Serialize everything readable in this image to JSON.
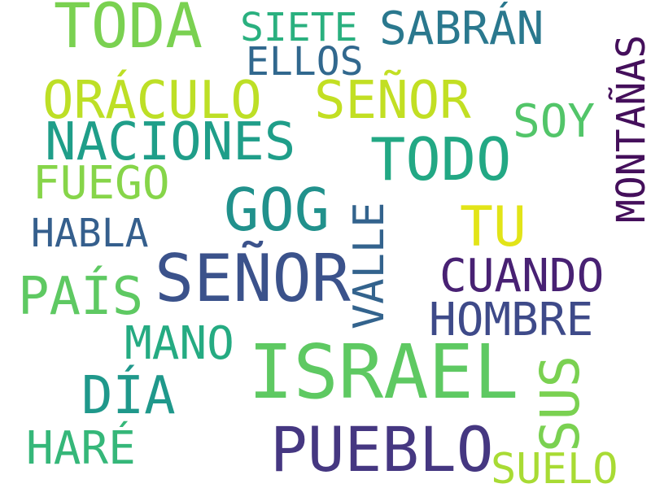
{
  "cloud": {
    "words": {
      "toda": {
        "text": "TODA",
        "color": "#7ad151"
      },
      "siete": {
        "text": "SIETE",
        "color": "#2ab07f"
      },
      "sabran": {
        "text": "SABRÁN",
        "color": "#2a788e"
      },
      "ellos": {
        "text": "ELLOS",
        "color": "#31688e"
      },
      "oraculo": {
        "text": "ORÁCULO",
        "color": "#bddf26"
      },
      "senor1": {
        "text": "SEÑOR",
        "color": "#c2df23"
      },
      "soy": {
        "text": "SOY",
        "color": "#52c569"
      },
      "naciones": {
        "text": "NACIONES",
        "color": "#1f9e89"
      },
      "todo": {
        "text": "TODO",
        "color": "#22a884"
      },
      "fuego": {
        "text": "FUEGO",
        "color": "#86d549"
      },
      "gog": {
        "text": "GOG",
        "color": "#21918c"
      },
      "tu": {
        "text": "TU",
        "color": "#e2e418"
      },
      "habla": {
        "text": "HABLA",
        "color": "#355f8d"
      },
      "senor2": {
        "text": "SEÑOR",
        "color": "#3b528b"
      },
      "cuando": {
        "text": "CUANDO",
        "color": "#482173"
      },
      "pais": {
        "text": "PAÍS",
        "color": "#5ec962"
      },
      "hombre": {
        "text": "HOMBRE",
        "color": "#3e4a89"
      },
      "mano": {
        "text": "MANO",
        "color": "#25ab82"
      },
      "israel": {
        "text": "ISRAEL",
        "color": "#5ec962"
      },
      "dia": {
        "text": "DÍA",
        "color": "#1f988b"
      },
      "hare": {
        "text": "HARÉ",
        "color": "#35b779"
      },
      "pueblo": {
        "text": "PUEBLO",
        "color": "#453781"
      },
      "suelo": {
        "text": "SUELO",
        "color": "#a8db34"
      },
      "montanas": {
        "text": "MONTAÑAS",
        "color": "#440f5b"
      },
      "valle": {
        "text": "VALLE",
        "color": "#33638d"
      },
      "sus": {
        "text": "SUS",
        "color": "#7ad151"
      }
    }
  }
}
